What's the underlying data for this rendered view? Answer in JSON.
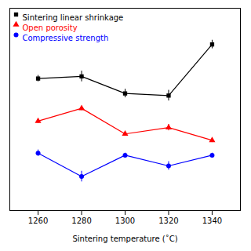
{
  "chart_data": {
    "type": "line",
    "x": [
      1260,
      1280,
      1300,
      1320,
      1340
    ],
    "xlabel": "Sintering temperature (˚C)",
    "xlim": [
      1247,
      1353
    ],
    "xticks": [
      1260,
      1280,
      1300,
      1320,
      1340
    ],
    "ylim": [
      0.1,
      1.05
    ],
    "tick_labels": "x",
    "grid": false,
    "legend": "upper left",
    "series": [
      {
        "name": "Sintering linear shrinkage",
        "color": "black",
        "marker": "square",
        "values": [
          0.72,
          0.73,
          0.65,
          0.64,
          0.88
        ],
        "errors": [
          0.015,
          0.025,
          0.02,
          0.025,
          0.02
        ]
      },
      {
        "name": "Open porosity",
        "color": "red",
        "marker": "triangle",
        "values": [
          0.52,
          0.58,
          0.46,
          0.49,
          0.43
        ],
        "errors": [
          0.01,
          0.01,
          0.01,
          0.015,
          0.01
        ]
      },
      {
        "name": "Compressive strength",
        "color": "blue",
        "marker": "circle",
        "values": [
          0.37,
          0.26,
          0.36,
          0.31,
          0.36
        ],
        "errors": [
          0.015,
          0.025,
          0.01,
          0.02,
          0.01
        ]
      }
    ]
  }
}
